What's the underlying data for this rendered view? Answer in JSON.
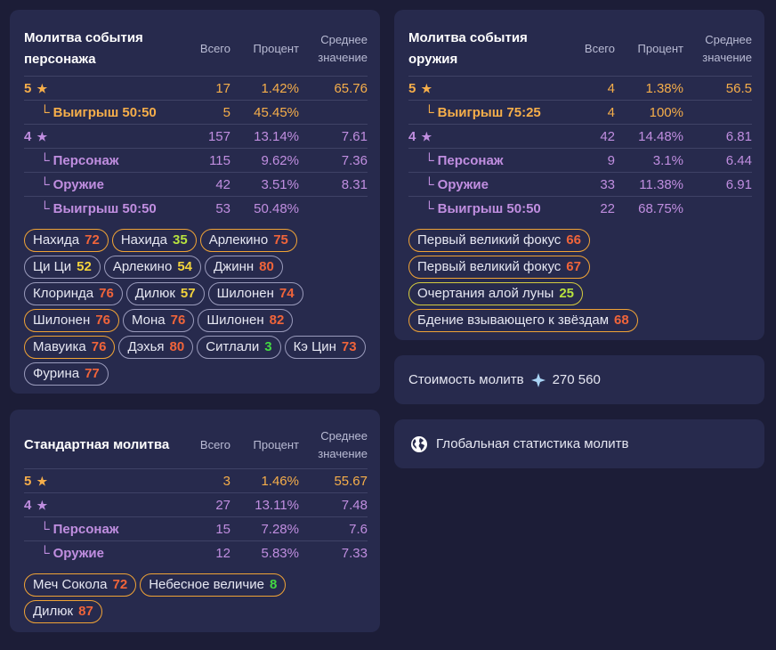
{
  "colors": {
    "background": "#1c1d37",
    "card": "#272a4d",
    "gold": "#f6ae4a",
    "purple": "#c08ee0",
    "num_orange": "#f0643a",
    "num_yellow": "#f2d23c",
    "num_lime": "#b7e23e",
    "num_green": "#43d843"
  },
  "headers": {
    "total": "Всего",
    "percent": "Процент",
    "avg_line1": "Среднее",
    "avg_line2": "значение"
  },
  "character_banner": {
    "title_line1": "Молитва события",
    "title_line2": "персонажа",
    "rows": [
      {
        "label": "5",
        "star": "★",
        "total": "17",
        "percent": "1.42%",
        "avg": "65.76",
        "rarity": "5",
        "sub": false
      },
      {
        "label": "Выигрыш 50:50",
        "star": "",
        "total": "5",
        "percent": "45.45%",
        "avg": "",
        "rarity": "5",
        "sub": true
      },
      {
        "label": "4",
        "star": "★",
        "total": "157",
        "percent": "13.14%",
        "avg": "7.61",
        "rarity": "4",
        "sub": false
      },
      {
        "label": "Персонаж",
        "star": "",
        "total": "115",
        "percent": "9.62%",
        "avg": "7.36",
        "rarity": "4",
        "sub": true
      },
      {
        "label": "Оружие",
        "star": "",
        "total": "42",
        "percent": "3.51%",
        "avg": "8.31",
        "rarity": "4",
        "sub": true
      },
      {
        "label": "Выигрыш 50:50",
        "star": "",
        "total": "53",
        "percent": "50.48%",
        "avg": "",
        "rarity": "4",
        "sub": true
      }
    ],
    "tags": [
      {
        "name": "Нахида",
        "count": "72",
        "color": "#f0643a",
        "border": "b5"
      },
      {
        "name": "Нахида",
        "count": "35",
        "color": "#b7e23e",
        "border": "b5"
      },
      {
        "name": "Арлекино",
        "count": "75",
        "color": "#f0643a",
        "border": "b5"
      },
      {
        "name": "Ци Ци",
        "count": "52",
        "color": "#f2d23c",
        "border": "b4"
      },
      {
        "name": "Арлекино",
        "count": "54",
        "color": "#f2d23c",
        "border": "b4"
      },
      {
        "name": "Джинн",
        "count": "80",
        "color": "#f0643a",
        "border": "b4"
      },
      {
        "name": "Клоринда",
        "count": "76",
        "color": "#f0643a",
        "border": "b4"
      },
      {
        "name": "Дилюк",
        "count": "57",
        "color": "#f2d23c",
        "border": "b4"
      },
      {
        "name": "Шилонен",
        "count": "74",
        "color": "#f0643a",
        "border": "b4"
      },
      {
        "name": "Шилонен",
        "count": "76",
        "color": "#f0643a",
        "border": "b5"
      },
      {
        "name": "Мона",
        "count": "76",
        "color": "#f0643a",
        "border": "b4"
      },
      {
        "name": "Шилонен",
        "count": "82",
        "color": "#f0643a",
        "border": "b4"
      },
      {
        "name": "Мавуика",
        "count": "76",
        "color": "#f0643a",
        "border": "b5"
      },
      {
        "name": "Дэхья",
        "count": "80",
        "color": "#f0643a",
        "border": "b4"
      },
      {
        "name": "Ситлали",
        "count": "3",
        "color": "#43d843",
        "border": "b4"
      },
      {
        "name": "Кэ Цин",
        "count": "73",
        "color": "#f0643a",
        "border": "b4"
      },
      {
        "name": "Фурина",
        "count": "77",
        "color": "#f0643a",
        "border": "b4"
      }
    ]
  },
  "weapon_banner": {
    "title_line1": "Молитва события",
    "title_line2": "оружия",
    "rows": [
      {
        "label": "5",
        "star": "★",
        "total": "4",
        "percent": "1.38%",
        "avg": "56.5",
        "rarity": "5",
        "sub": false
      },
      {
        "label": "Выигрыш 75:25",
        "star": "",
        "total": "4",
        "percent": "100%",
        "avg": "",
        "rarity": "5",
        "sub": true
      },
      {
        "label": "4",
        "star": "★",
        "total": "42",
        "percent": "14.48%",
        "avg": "6.81",
        "rarity": "4",
        "sub": false
      },
      {
        "label": "Персонаж",
        "star": "",
        "total": "9",
        "percent": "3.1%",
        "avg": "6.44",
        "rarity": "4",
        "sub": true
      },
      {
        "label": "Оружие",
        "star": "",
        "total": "33",
        "percent": "11.38%",
        "avg": "6.91",
        "rarity": "4",
        "sub": true
      },
      {
        "label": "Выигрыш 50:50",
        "star": "",
        "total": "22",
        "percent": "68.75%",
        "avg": "",
        "rarity": "4",
        "sub": true
      }
    ],
    "tags": [
      {
        "name": "Первый великий фокус",
        "count": "66",
        "color": "#f0643a",
        "border": "b5"
      },
      {
        "name": "Первый великий фокус",
        "count": "67",
        "color": "#f0643a",
        "border": "b5"
      },
      {
        "name": "Очертания алой луны",
        "count": "25",
        "color": "#b7e23e",
        "border": "b3"
      },
      {
        "name": "Бдение взывающего к звёздам",
        "count": "68",
        "color": "#f0643a",
        "border": "b5"
      }
    ]
  },
  "standard_banner": {
    "title_line1": "Стандартная молитва",
    "title_line2": "",
    "rows": [
      {
        "label": "5",
        "star": "★",
        "total": "3",
        "percent": "1.46%",
        "avg": "55.67",
        "rarity": "5",
        "sub": false
      },
      {
        "label": "4",
        "star": "★",
        "total": "27",
        "percent": "13.11%",
        "avg": "7.48",
        "rarity": "4",
        "sub": false
      },
      {
        "label": "Персонаж",
        "star": "",
        "total": "15",
        "percent": "7.28%",
        "avg": "7.6",
        "rarity": "4",
        "sub": true
      },
      {
        "label": "Оружие",
        "star": "",
        "total": "12",
        "percent": "5.83%",
        "avg": "7.33",
        "rarity": "4",
        "sub": true
      }
    ],
    "tags": [
      {
        "name": "Меч Сокола",
        "count": "72",
        "color": "#f0643a",
        "border": "b5"
      },
      {
        "name": "Небесное величие",
        "count": "8",
        "color": "#43d843",
        "border": "b5"
      },
      {
        "name": "Дилюк",
        "count": "87",
        "color": "#f0643a",
        "border": "b5"
      }
    ]
  },
  "cost": {
    "label": "Стоимость молитв",
    "icon": "primogem-icon",
    "value": "270 560"
  },
  "global": {
    "icon": "globe-icon",
    "label": "Глобальная статистика молитв"
  },
  "branch_glyph": "└"
}
